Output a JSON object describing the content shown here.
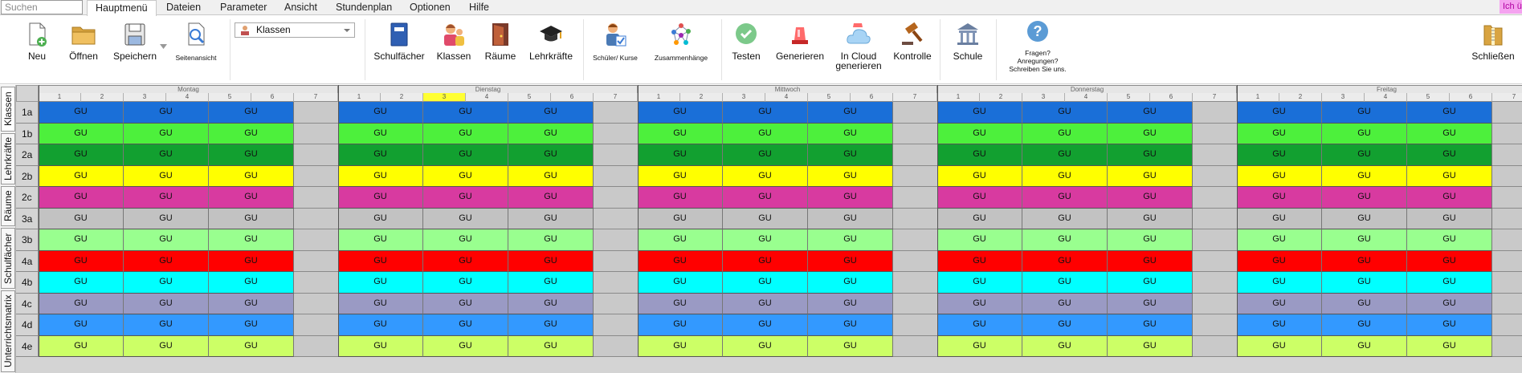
{
  "search": {
    "placeholder": "Suchen"
  },
  "menu": {
    "items": [
      "Hauptmenü",
      "Dateien",
      "Parameter",
      "Ansicht",
      "Stundenplan",
      "Optionen",
      "Hilfe"
    ],
    "active": "Hauptmenü",
    "user_badge": "Ich ü"
  },
  "ribbon": {
    "new": "Neu",
    "open": "Öffnen",
    "save": "Speichern",
    "page_view": "Seitenansicht",
    "view_select": "Klassen",
    "subjects": "Schulfächer",
    "classes": "Klassen",
    "rooms": "Räume",
    "teachers": "Lehrkräfte",
    "students": "Schüler/ Kurse",
    "relations": "Zusammenhänge",
    "test": "Testen",
    "generate": "Generieren",
    "cloud_generate": "In Cloud generieren",
    "control": "Kontrolle",
    "school": "Schule",
    "help_q1": "Fragen?",
    "help_q2": "Anregungen?",
    "help_q3": "Schreiben Sie uns.",
    "close": "Schließen"
  },
  "side_tabs": [
    "Klassen",
    "Lehrkräfte",
    "Räume",
    "Schulfächer",
    "Unterrichtsmatrix"
  ],
  "days": [
    "Montag",
    "Dienstag",
    "Mittwoch",
    "Donnerstag",
    "Freitag"
  ],
  "periods": [
    "1",
    "2",
    "3",
    "4",
    "5",
    "6",
    "7"
  ],
  "selected_period": {
    "day": 1,
    "period": 3
  },
  "lesson_label": "GU",
  "classes": [
    {
      "name": "1a",
      "color": "#1a6fd8"
    },
    {
      "name": "1b",
      "color": "#4df03c"
    },
    {
      "name": "2a",
      "color": "#12a030"
    },
    {
      "name": "2b",
      "color": "#ffff00"
    },
    {
      "name": "2c",
      "color": "#d83aa0"
    },
    {
      "name": "3a",
      "color": "#c2c2c2"
    },
    {
      "name": "3b",
      "color": "#99ff8f"
    },
    {
      "name": "4a",
      "color": "#ff0000"
    },
    {
      "name": "4b",
      "color": "#00ffff"
    },
    {
      "name": "4c",
      "color": "#9a9ac4"
    },
    {
      "name": "4d",
      "color": "#3399ff"
    },
    {
      "name": "4e",
      "color": "#ccff66"
    }
  ]
}
